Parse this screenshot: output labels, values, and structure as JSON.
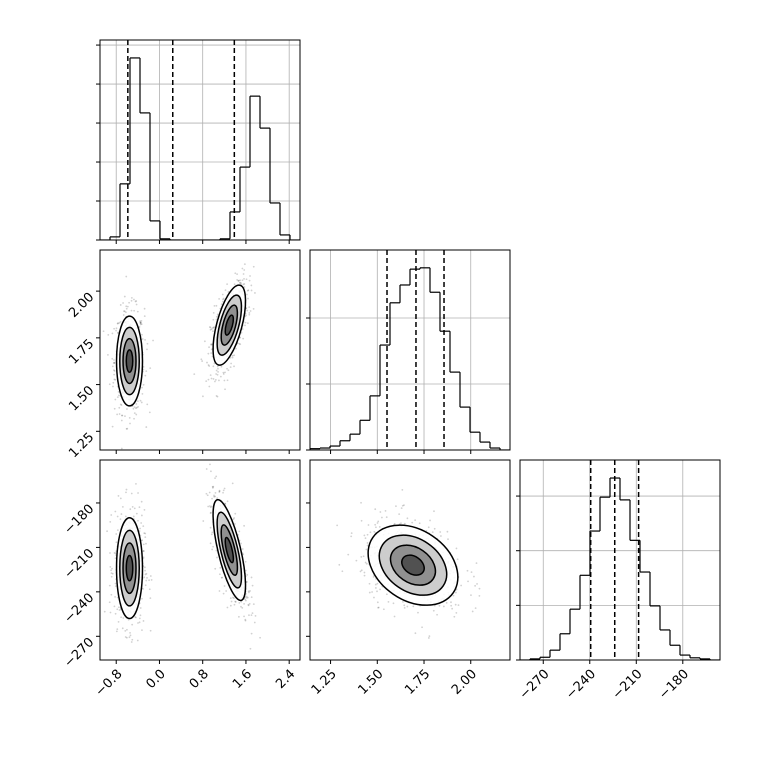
{
  "chart_data": [
    {
      "type": "histogram",
      "xlim": [
        -1.1,
        2.6
      ],
      "ylim": [
        0,
        5.13
      ],
      "bins": [
        -1.1,
        -0.915,
        -0.73,
        -0.545,
        -0.36,
        -0.175,
        0.01,
        0.195,
        0.38,
        0.565,
        0.75,
        0.935,
        1.12,
        1.305,
        1.49,
        1.675,
        1.86,
        2.045,
        2.23,
        2.415,
        2.6
      ],
      "values": [
        0,
        0.08,
        1.44,
        4.67,
        3.26,
        0.49,
        0.03,
        0,
        0,
        0,
        0,
        0,
        0.03,
        0.72,
        1.87,
        3.69,
        2.87,
        0.95,
        0.13,
        0
      ],
      "xticks": [
        -0.8,
        0,
        0.8,
        1.6,
        2.4
      ],
      "yticks": [
        0,
        1,
        2,
        3,
        4,
        5
      ],
      "quantiles": [
        -0.585,
        0.246,
        1.385
      ],
      "grid": true,
      "color": "#000000"
    },
    {
      "type": "contour",
      "xlim": [
        -1.1,
        2.6
      ],
      "ylim": [
        1.15,
        2.22
      ],
      "xticks": [
        -0.8,
        0,
        0.8,
        1.6,
        2.4
      ],
      "yticks": [
        {
          "value": 1.25,
          "label": "1.25"
        },
        {
          "value": 1.5,
          "label": "1.50"
        },
        {
          "value": 1.75,
          "label": "1.75"
        },
        {
          "value": 2,
          "label": "2.00"
        }
      ],
      "ytick_labels": true,
      "clusters": [
        {
          "x": -0.554,
          "y": 1.626,
          "sx": 0.12,
          "sy": 0.12,
          "rho": 0
        },
        {
          "x": 1.292,
          "y": 1.818,
          "sx": 0.15,
          "sy": 0.107,
          "rho": 0.6
        }
      ],
      "color": "#000000"
    },
    {
      "type": "histogram",
      "xlim": [
        1.14,
        2.21
      ],
      "ylim": [
        0,
        3.03
      ],
      "bins": [
        1.14,
        1.1935,
        1.247,
        1.3005,
        1.354,
        1.4075,
        1.461,
        1.5145,
        1.568,
        1.6215,
        1.675,
        1.7285,
        1.782,
        1.8355,
        1.889,
        1.9425,
        1.996,
        2.0495,
        2.103,
        2.1565,
        2.21
      ],
      "values": [
        0.02,
        0.03,
        0.06,
        0.14,
        0.24,
        0.45,
        0.82,
        1.59,
        2.23,
        2.5,
        2.74,
        2.76,
        2.39,
        1.8,
        1.18,
        0.65,
        0.27,
        0.12,
        0.03,
        0
      ],
      "xticks": [
        1.25,
        1.5,
        1.75,
        2
      ],
      "yticks": [
        0,
        1,
        2
      ],
      "quantiles": [
        1.552,
        1.707,
        1.857
      ],
      "grid": true,
      "color": "#000000"
    },
    {
      "type": "contour",
      "xlim": [
        -1.1,
        2.6
      ],
      "ylim": [
        -286,
        -151
      ],
      "xticks": [
        {
          "value": -0.8,
          "label": "−0.8"
        },
        {
          "value": 0,
          "label": "0.0"
        },
        0.8,
        1.6,
        2.4
      ],
      "yticks": [
        {
          "value": -270,
          "label": "−270"
        },
        {
          "value": -240,
          "label": "−240"
        },
        {
          "value": -210,
          "label": "−210"
        },
        {
          "value": -180,
          "label": "−180"
        }
      ],
      "xtick_labels": true,
      "ytick_labels": true,
      "clusters": [
        {
          "x": -0.554,
          "y": -224,
          "sx": 0.12,
          "sy": 17,
          "rho": 0
        },
        {
          "x": 1.292,
          "y": -211.8,
          "sx": 0.15,
          "sy": 17,
          "rho": -0.7
        }
      ],
      "color": "#000000"
    },
    {
      "type": "contour",
      "xlim": [
        1.14,
        2.21
      ],
      "ylim": [
        -286,
        -151
      ],
      "xticks": [
        1.25,
        {
          "value": 1.5,
          "label": "1.50"
        },
        1.75,
        {
          "value": 2,
          "label": "2.00"
        }
      ],
      "yticks": [
        -270,
        -240,
        -210,
        -180
      ],
      "xtick_labels": true,
      "clusters": [
        {
          "x": 1.691,
          "y": -222,
          "sx": 0.12,
          "sy": 13.5,
          "rho": -0.3
        }
      ],
      "color": "#000000"
    },
    {
      "type": "histogram",
      "xlim": [
        -285,
        -156
      ],
      "ylim": [
        0,
        3.66
      ],
      "bins": [
        -285,
        -278.55,
        -272.1,
        -265.65,
        -259.2,
        -252.75,
        -246.3,
        -239.85,
        -233.4,
        -226.95,
        -220.5,
        -214.05,
        -207.6,
        -201.15,
        -194.7,
        -188.25,
        -181.8,
        -175.35,
        -168.9,
        -162.45,
        -156
      ],
      "values": [
        0,
        0.02,
        0.05,
        0.18,
        0.48,
        0.93,
        1.55,
        2.36,
        2.98,
        3.33,
        2.93,
        2.19,
        1.61,
        0.99,
        0.55,
        0.27,
        0.09,
        0.04,
        0.02,
        0
      ],
      "xticks": [
        {
          "value": -270,
          "label": "−270"
        },
        {
          "value": -240,
          "label": "−240"
        },
        {
          "value": -210,
          "label": "−210"
        },
        {
          "value": -180,
          "label": "−180"
        }
      ],
      "yticks": [
        0,
        1,
        2,
        3
      ],
      "xtick_labels": true,
      "quantiles": [
        -239.4,
        -223.9,
        -208.5
      ],
      "grid": true,
      "color": "#000000"
    }
  ]
}
